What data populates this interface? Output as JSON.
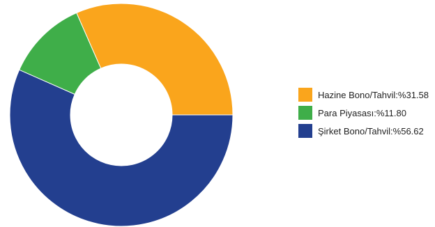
{
  "chart_data": {
    "type": "pie",
    "donut": true,
    "slices": [
      {
        "label": "Hazine Bono/Tahvil:%31.58",
        "value": 31.58,
        "color": "#faa51c"
      },
      {
        "label": "Para Piyasası:%11.80",
        "value": 11.8,
        "color": "#3fae49"
      },
      {
        "label": "Şirket Bono/Tahvil:%56.62",
        "value": 56.62,
        "color": "#233f8f"
      }
    ],
    "legend_position": "right"
  }
}
